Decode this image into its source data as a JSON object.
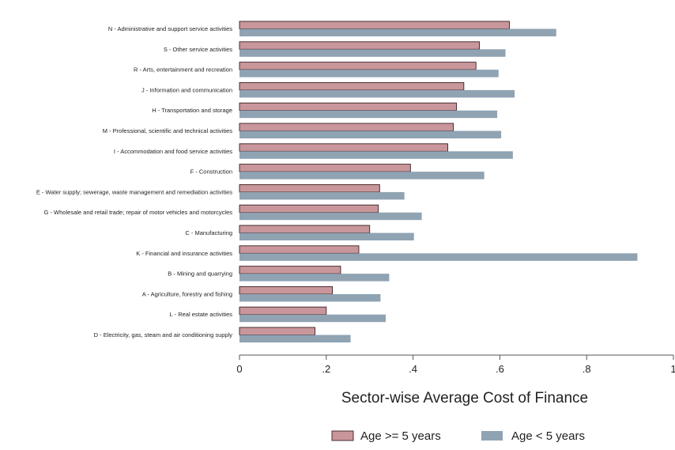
{
  "chart_data": {
    "type": "bar",
    "orientation": "horizontal",
    "xlabel": "Sector-wise Average Cost of Finance",
    "xlim": [
      0,
      1
    ],
    "xticks": [
      {
        "value": 0,
        "label": "0"
      },
      {
        "value": 0.2,
        "label": ".2"
      },
      {
        "value": 0.4,
        "label": ".4"
      },
      {
        "value": 0.6,
        "label": ".6"
      },
      {
        "value": 0.8,
        "label": ".8"
      },
      {
        "value": 1,
        "label": "1"
      }
    ],
    "grid": false,
    "legend_position": "bottom",
    "categories": [
      "N - Administrative and support service activities",
      "S - Other service activities",
      "R - Arts, entertainment and recreation",
      "J - Information and communication",
      "H - Transportation and storage",
      "M - Professional, scientific and technical activities",
      "I - Accommodation and food service activities",
      "F - Construction",
      "E - Water supply; sewerage, waste management and remediation activities",
      "G - Wholesale and retail trade; repair of motor vehicles and motorcycles",
      "C - Manufacturing",
      "K - Financial and insurance activities",
      "B - Mining and quarrying",
      "A - Agriculture, forestry and fishing",
      "L - Real estate activities",
      "D - Electricity, gas, steam and air conditioning supply"
    ],
    "series": [
      {
        "name": "Age >= 5 years",
        "color": "#c9979b",
        "values": [
          0.622,
          0.553,
          0.545,
          0.517,
          0.5,
          0.493,
          0.48,
          0.394,
          0.323,
          0.32,
          0.3,
          0.275,
          0.233,
          0.214,
          0.2,
          0.174
        ]
      },
      {
        "name": "Age < 5 years",
        "color": "#8fa3b3",
        "values": [
          0.73,
          0.613,
          0.597,
          0.634,
          0.594,
          0.603,
          0.63,
          0.564,
          0.38,
          0.42,
          0.402,
          0.917,
          0.345,
          0.325,
          0.337,
          0.256
        ]
      }
    ]
  }
}
